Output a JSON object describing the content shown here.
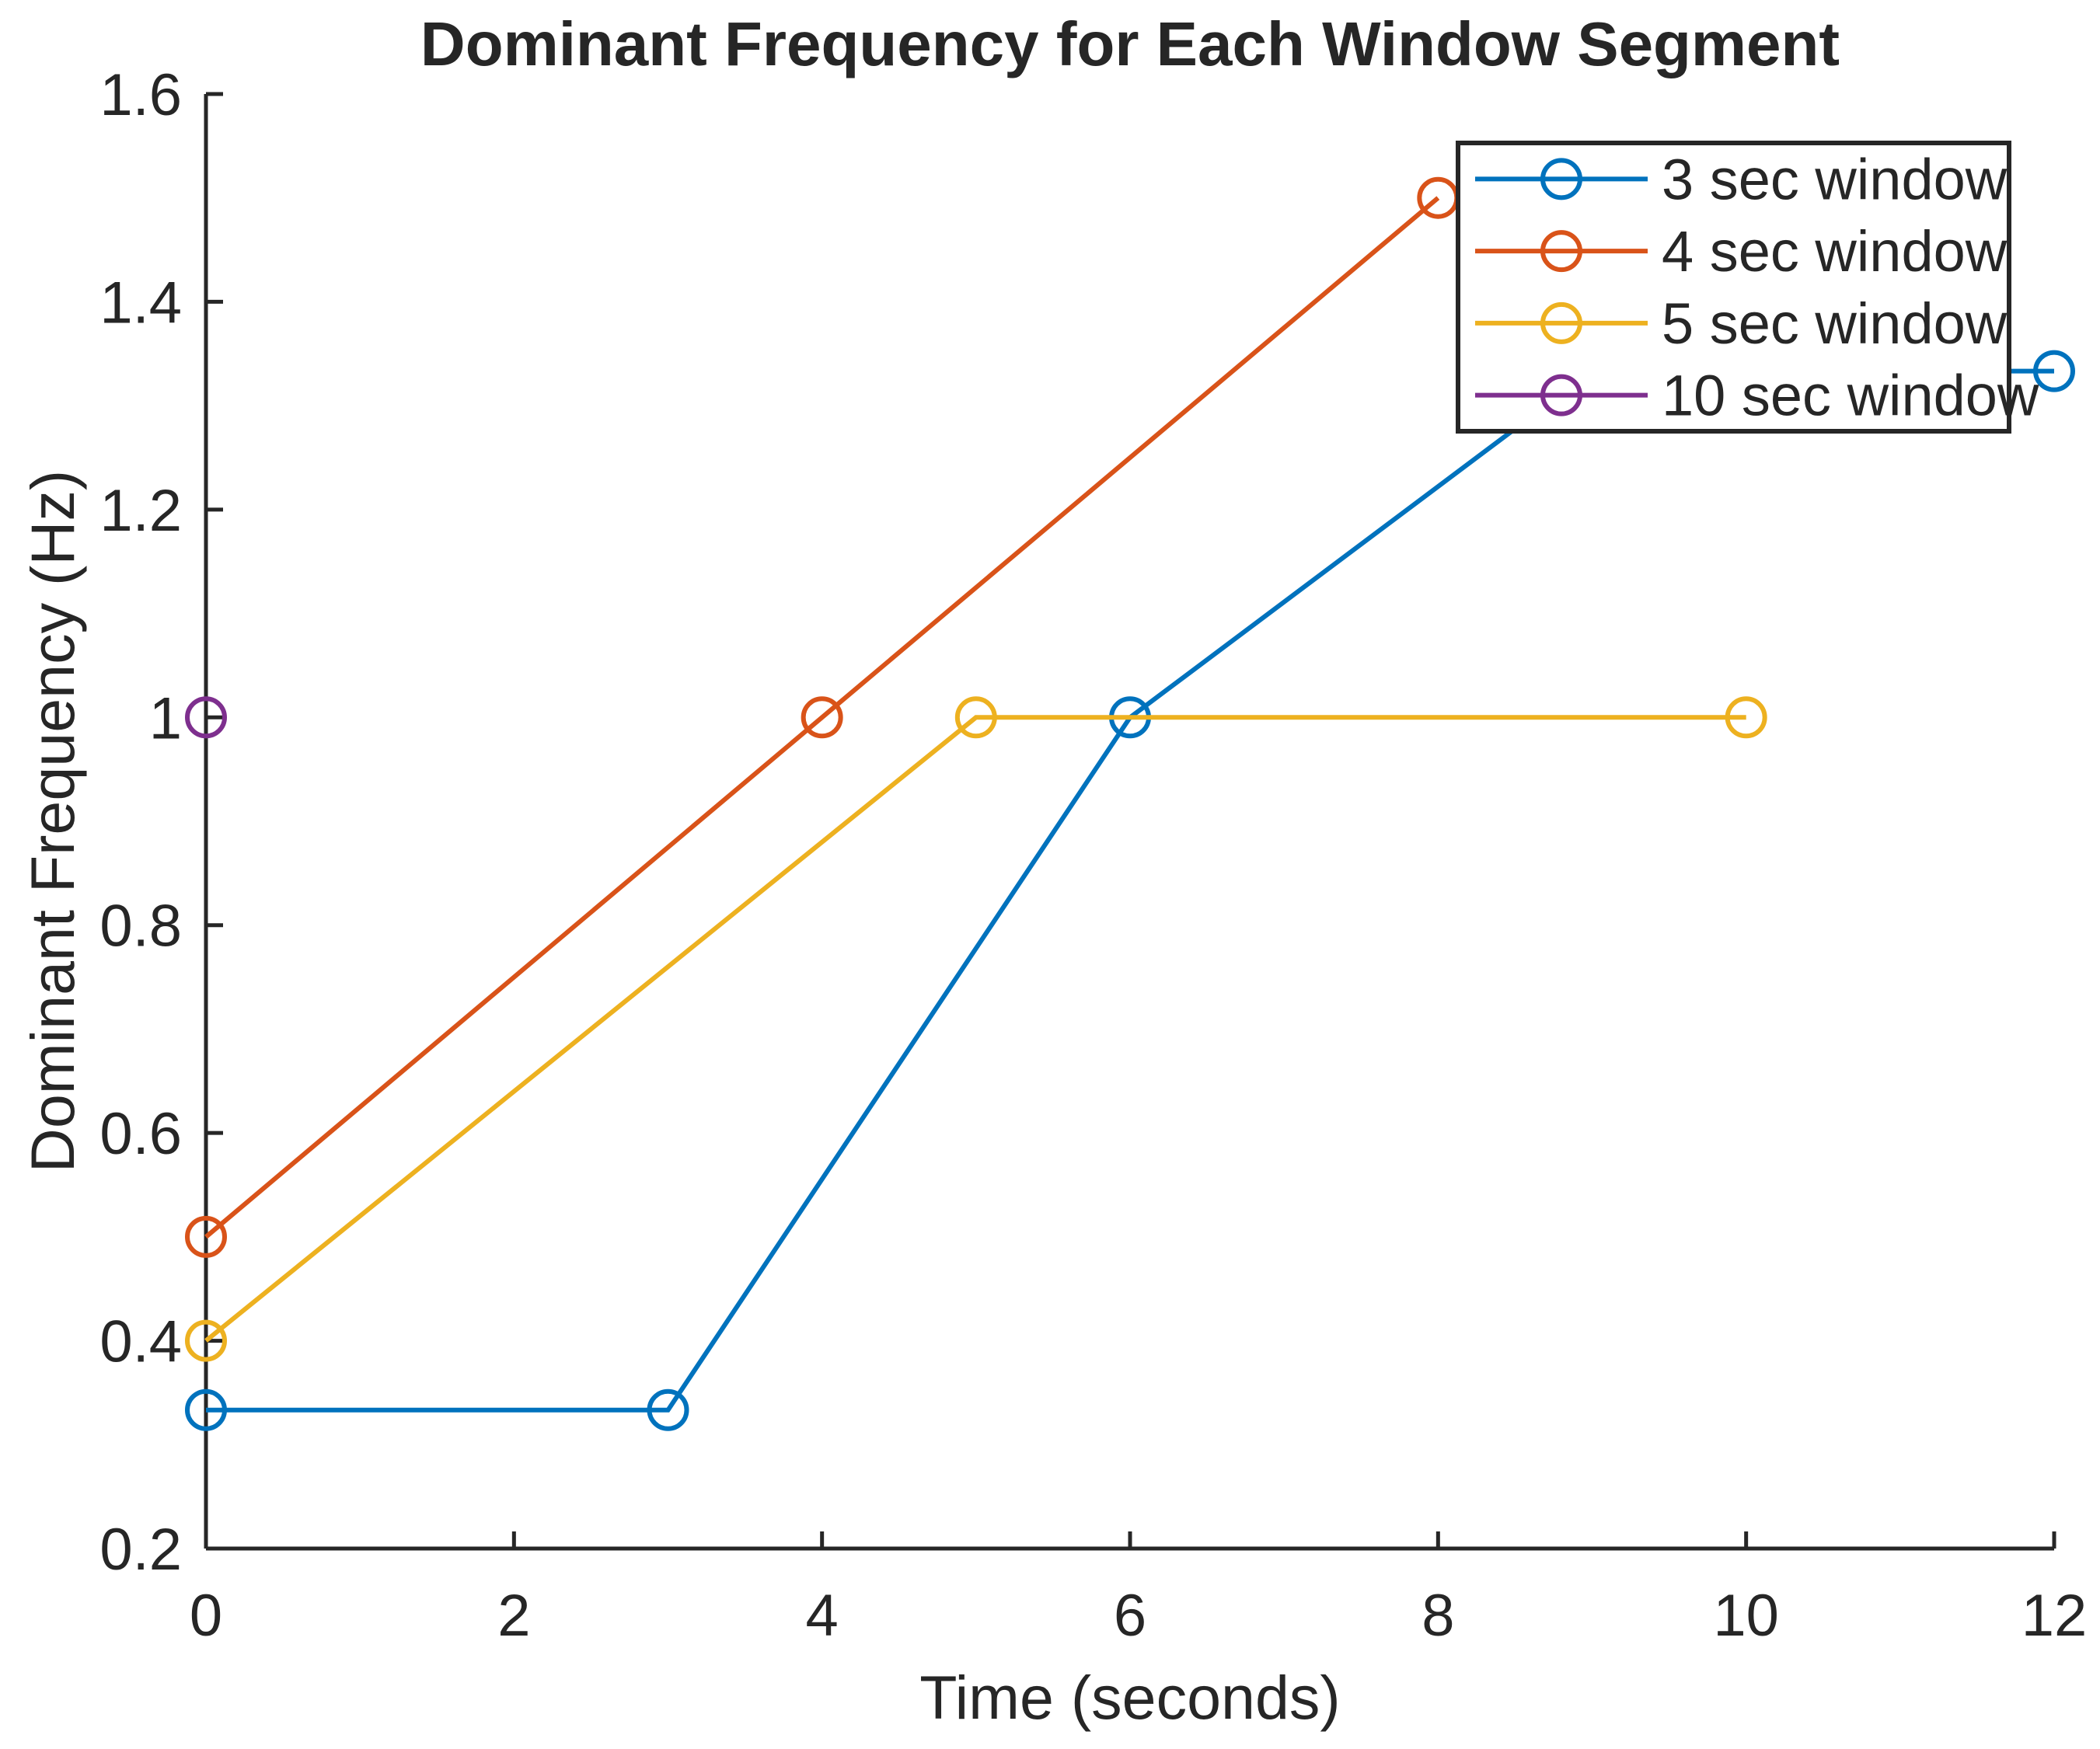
{
  "figure": {
    "background": "#ffffff"
  },
  "chart_data": {
    "type": "line",
    "title": "Dominant Frequency for Each Window Segment",
    "xlabel": "Time (seconds)",
    "ylabel": "Dominant Frequency (Hz)",
    "xlim": [
      0,
      12
    ],
    "ylim": [
      0.2,
      1.6
    ],
    "xticks": [
      0,
      2,
      4,
      6,
      8,
      10,
      12
    ],
    "xtick_labels": [
      "0",
      "2",
      "4",
      "6",
      "8",
      "10",
      "12"
    ],
    "yticks": [
      0.2,
      0.4,
      0.6,
      0.8,
      1,
      1.2,
      1.4,
      1.6
    ],
    "ytick_labels": [
      "0.2",
      "0.4",
      "0.6",
      "0.8",
      "1",
      "1.2",
      "1.4",
      "1.6"
    ],
    "grid": false,
    "axis_color": "#262626",
    "marker": "hollow-circle",
    "legend": {
      "position": "top-right-inside",
      "border_color": "#262626",
      "background": "#ffffff"
    },
    "series": [
      {
        "name": "3 sec window",
        "color": "#0072BD",
        "points": [
          [
            0,
            0.3333
          ],
          [
            3,
            0.3333
          ],
          [
            6,
            1
          ],
          [
            9,
            1.3333
          ],
          [
            12,
            1.3333
          ]
        ]
      },
      {
        "name": "4 sec window",
        "color": "#D95319",
        "points": [
          [
            0,
            0.5
          ],
          [
            4,
            1
          ],
          [
            8,
            1.5
          ]
        ]
      },
      {
        "name": "5 sec window",
        "color": "#EDB120",
        "points": [
          [
            0,
            0.4
          ],
          [
            5,
            1
          ],
          [
            10,
            1
          ]
        ]
      },
      {
        "name": "10 sec window",
        "color": "#7E2F8E",
        "points": [
          [
            0,
            1
          ]
        ]
      }
    ]
  }
}
